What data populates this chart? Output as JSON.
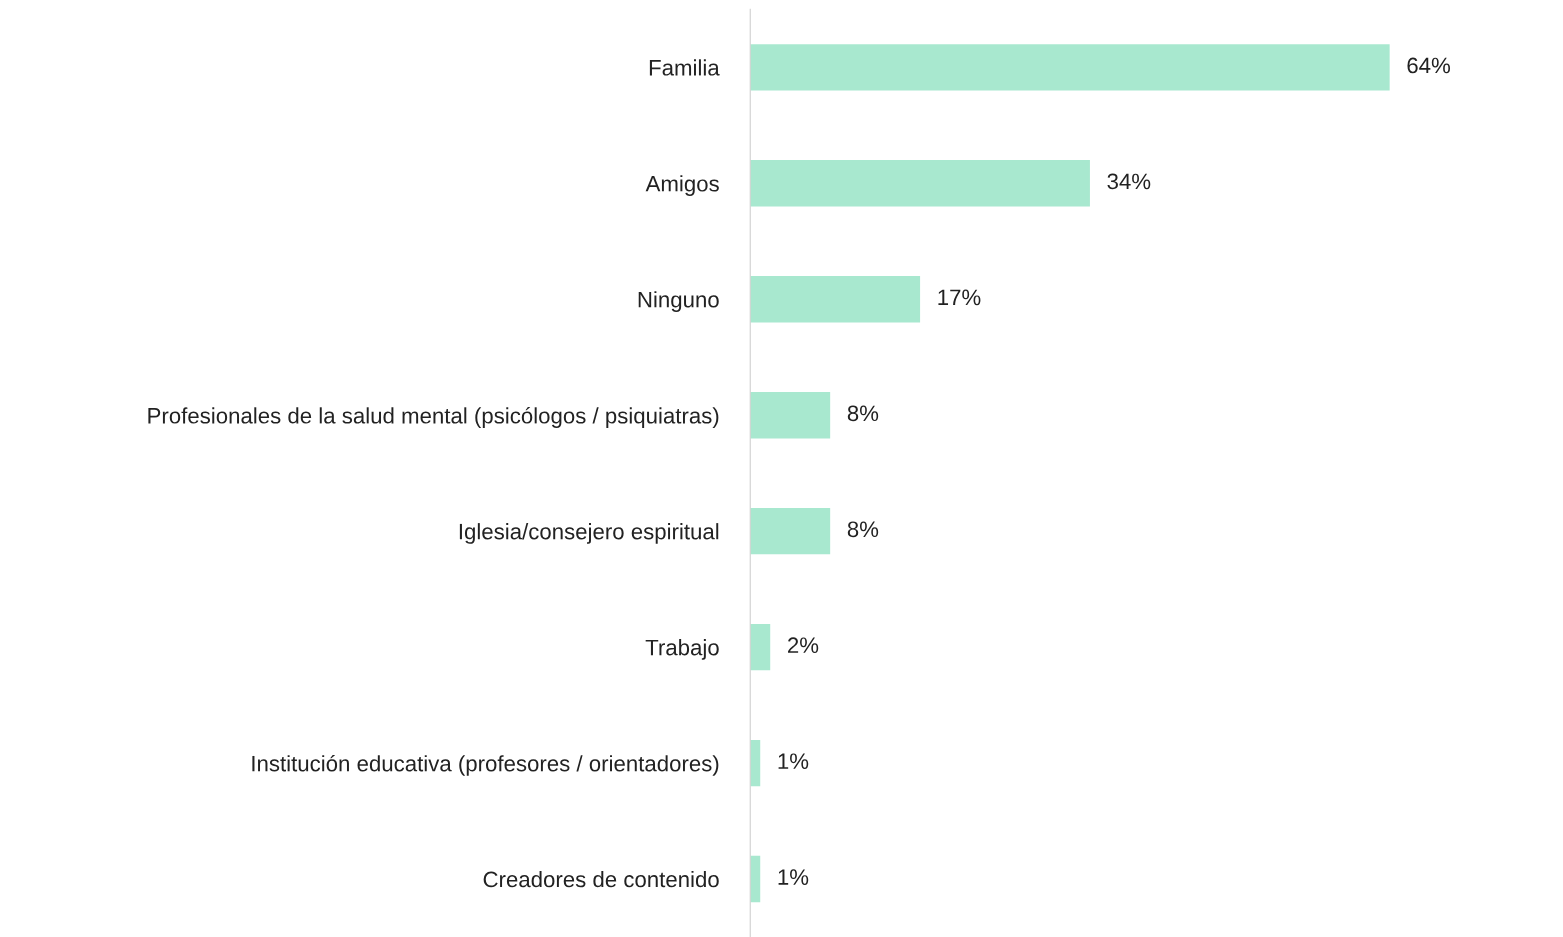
{
  "chart_data": {
    "type": "bar",
    "orientation": "horizontal",
    "categories": [
      "Familia",
      "Amigos",
      "Ninguno",
      "Profesionales de la salud mental (psicólogos / psiquiatras)",
      "Iglesia/consejero espiritual",
      "Trabajo",
      "Institución educativa (profesores / orientadores)",
      "Creadores de contenido"
    ],
    "values": [
      64,
      34,
      17,
      8,
      8,
      2,
      1,
      1
    ],
    "value_labels": [
      "64%",
      "34%",
      "17%",
      "8%",
      "8%",
      "2%",
      "1%",
      "1%"
    ],
    "color": "#a8e8cf",
    "grid": false,
    "legend": false,
    "tick_labels": "y"
  }
}
